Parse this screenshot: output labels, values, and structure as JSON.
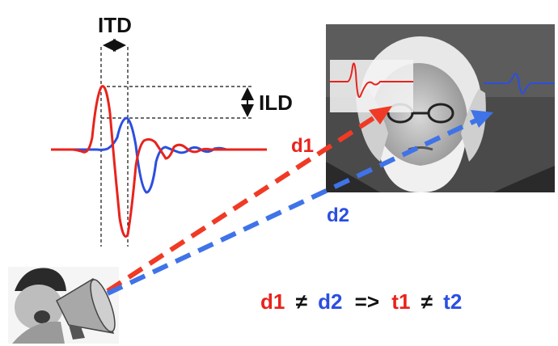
{
  "labels": {
    "itd": "ITD",
    "ild": "ILD",
    "d1": "d1",
    "d2": "d2"
  },
  "equation": {
    "d1": "d1",
    "neq1": "≠",
    "d2": "d2",
    "arrow": "=>",
    "t1": "t1",
    "neq2": "≠",
    "t2": "t2"
  },
  "colors": {
    "red": "#e8231c",
    "blue": "#2b4fe0",
    "dash_red": "#f03a25",
    "dash_blue": "#3f73e8",
    "black": "#111111"
  },
  "images": {
    "speaker": "man-shouting-into-megaphone-sketch",
    "listener": "bearded-man-covering-ears-photo"
  }
}
